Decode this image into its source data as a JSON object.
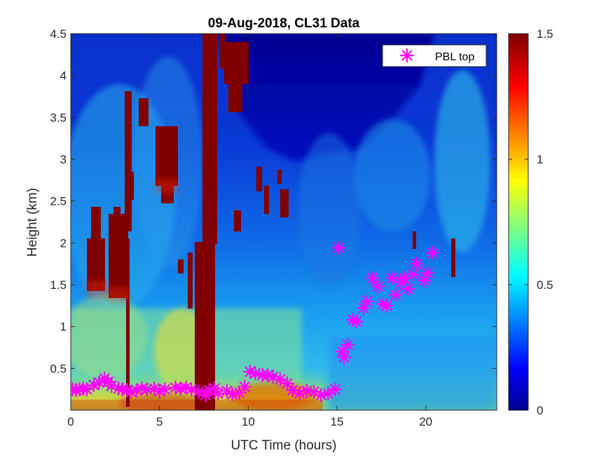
{
  "chart_data": {
    "type": "heatmap",
    "title": "09-Aug-2018, CL31 Data",
    "xlabel": "UTC Time (hours)",
    "ylabel": "Height (km)",
    "xlim": [
      0,
      24
    ],
    "ylim": [
      0,
      4.5
    ],
    "xticks": [
      0,
      5,
      10,
      15,
      20
    ],
    "yticks": [
      0.5,
      1,
      1.5,
      2,
      2.5,
      3,
      3.5,
      4,
      4.5
    ],
    "xtick_labels": [
      "0",
      "5",
      "10",
      "15",
      "20"
    ],
    "ytick_labels": [
      "0.5",
      "1",
      "1.5",
      "2",
      "2.5",
      "3",
      "3.5",
      "4",
      "4.5"
    ],
    "colormap": "jet",
    "clim": [
      0,
      1.5
    ],
    "colorbar_ticks": [
      0,
      0.5,
      1,
      1.5
    ],
    "colorbar_tick_labels": [
      "0",
      "0.5",
      "1",
      "1.5"
    ],
    "legend": {
      "position": "top-right",
      "entries": [
        "PBL top"
      ]
    },
    "grid": false,
    "series": [
      {
        "name": "PBL top",
        "marker": "asterisk",
        "color": "#ff00ff",
        "x": [
          0.1,
          0.3,
          0.5,
          0.7,
          0.9,
          1.3,
          1.6,
          1.9,
          2.1,
          2.3,
          2.7,
          2.9,
          3.2,
          3.4,
          3.7,
          4.0,
          4.3,
          4.7,
          5.0,
          5.3,
          5.9,
          6.2,
          6.5,
          6.8,
          7.2,
          7.6,
          7.8,
          8.1,
          8.3,
          8.8,
          9.1,
          9.5,
          9.8,
          10.1,
          10.4,
          10.8,
          11.1,
          11.4,
          11.8,
          12.2,
          12.5,
          12.9,
          13.3,
          13.7,
          14.1,
          14.5,
          14.9,
          15.1,
          15.3,
          15.4,
          15.6,
          15.9,
          16.1,
          16.5,
          16.7,
          17.0,
          17.3,
          17.6,
          17.8,
          18.1,
          18.3,
          18.6,
          18.8,
          19.0,
          19.3,
          19.5,
          19.9,
          20.1,
          20.4
        ],
        "y": [
          0.25,
          0.24,
          0.25,
          0.26,
          0.25,
          0.3,
          0.33,
          0.38,
          0.34,
          0.29,
          0.26,
          0.25,
          0.24,
          0.22,
          0.24,
          0.26,
          0.25,
          0.26,
          0.23,
          0.25,
          0.27,
          0.26,
          0.27,
          0.25,
          0.22,
          0.18,
          0.24,
          0.26,
          0.2,
          0.23,
          0.19,
          0.21,
          0.28,
          0.46,
          0.44,
          0.42,
          0.42,
          0.4,
          0.37,
          0.32,
          0.24,
          0.2,
          0.23,
          0.22,
          0.18,
          0.2,
          0.25,
          1.94,
          0.7,
          0.63,
          0.78,
          1.08,
          1.06,
          1.22,
          1.3,
          1.58,
          1.48,
          1.27,
          1.25,
          1.58,
          1.38,
          1.53,
          1.58,
          1.45,
          1.62,
          1.75,
          1.55,
          1.64,
          1.88
        ]
      }
    ]
  }
}
